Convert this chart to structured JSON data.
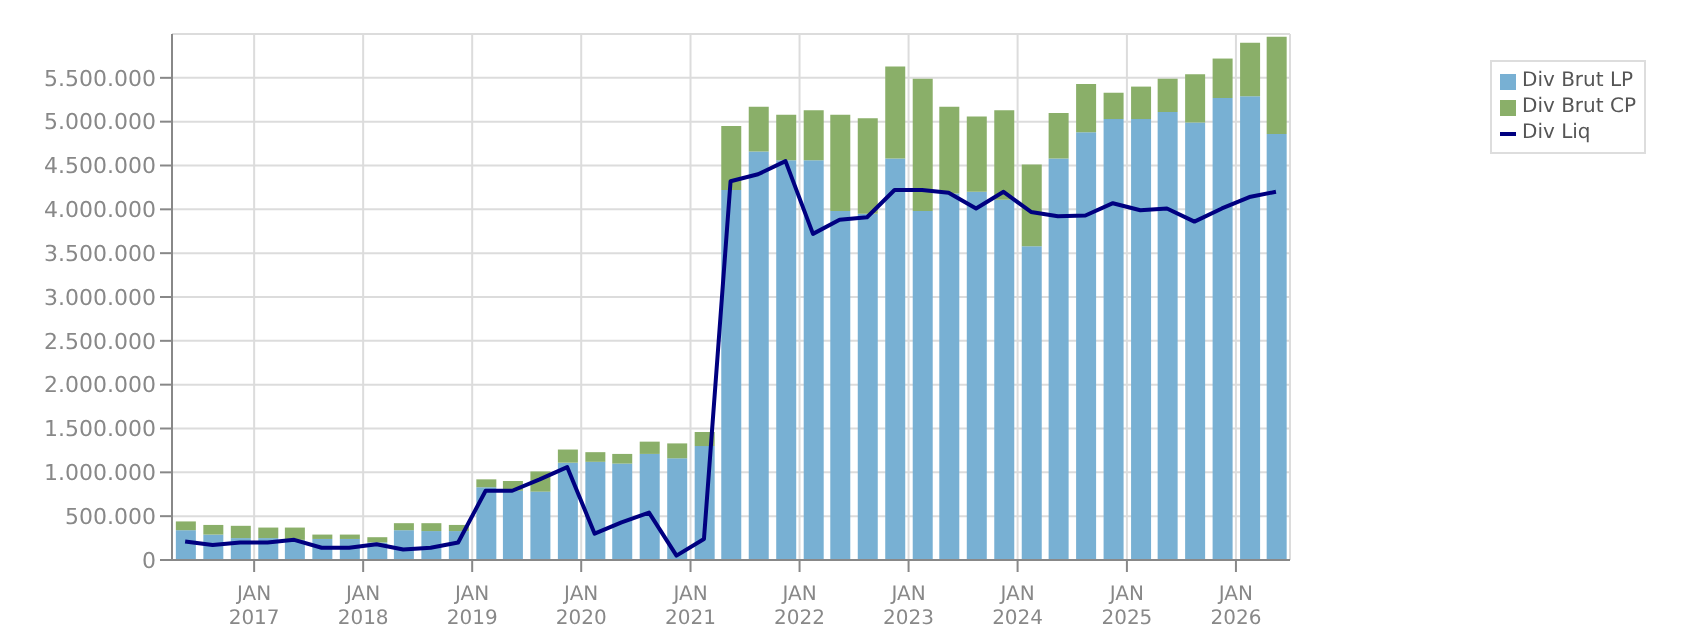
{
  "chart_data": {
    "type": "bar",
    "stacked": true,
    "grid": true,
    "legend": "top right",
    "x": [
      "2016-05-15",
      "2016-08-15",
      "2016-11-15",
      "2017-02-15",
      "2017-05-15",
      "2017-08-15",
      "2017-11-15",
      "2018-02-15",
      "2018-05-15",
      "2018-08-15",
      "2018-11-15",
      "2019-02-15",
      "2019-05-15",
      "2019-08-15",
      "2019-11-15",
      "2020-02-15",
      "2020-05-15",
      "2020-08-15",
      "2020-11-15",
      "2021-02-15",
      "2021-05-15",
      "2021-08-15",
      "2021-11-15",
      "2022-02-15",
      "2022-05-15",
      "2022-08-15",
      "2022-11-15",
      "2023-02-15",
      "2023-05-15",
      "2023-08-15",
      "2023-11-15",
      "2024-02-15",
      "2024-05-15",
      "2024-08-15",
      "2024-11-15",
      "2025-02-15",
      "2025-05-15",
      "2025-08-15",
      "2025-11-15",
      "2026-02-15",
      "2026-05-15"
    ],
    "xlim": [
      "2016-04-01",
      "2026-07-01"
    ],
    "xticks": [
      {
        "value": "2017-01-01",
        "label": "JAN 2017"
      },
      {
        "value": "2018-01-01",
        "label": "JAN 2018"
      },
      {
        "value": "2019-01-01",
        "label": "JAN 2019"
      },
      {
        "value": "2020-01-01",
        "label": "JAN 2020"
      },
      {
        "value": "2021-01-01",
        "label": "JAN 2021"
      },
      {
        "value": "2022-01-01",
        "label": "JAN 2022"
      },
      {
        "value": "2023-01-01",
        "label": "JAN 2023"
      },
      {
        "value": "2024-01-01",
        "label": "JAN 2024"
      },
      {
        "value": "2025-01-01",
        "label": "JAN 2025"
      },
      {
        "value": "2026-01-01",
        "label": "JAN 2026"
      }
    ],
    "ylim": [
      0,
      6000000
    ],
    "yticks": [
      0,
      {
        "value": 500000,
        "label": "500.000"
      },
      {
        "value": 1000000,
        "label": "1.000.000"
      },
      {
        "value": 1500000,
        "label": "1.500.000"
      },
      {
        "value": 2000000,
        "label": "2.000.000"
      },
      {
        "value": 2500000,
        "label": "2.500.000"
      },
      {
        "value": 3000000,
        "label": "3.000.000"
      },
      {
        "value": 3500000,
        "label": "3.500.000"
      },
      {
        "value": 4000000,
        "label": "4.000.000"
      },
      {
        "value": 4500000,
        "label": "4.500.000"
      },
      {
        "value": 5000000,
        "label": "5.000.000"
      },
      {
        "value": 5500000,
        "label": "5.500.000"
      }
    ],
    "series": [
      {
        "name": "Div Brut LP",
        "color": "#78b0d3",
        "values": [
          340000,
          290000,
          250000,
          250000,
          230000,
          240000,
          240000,
          200000,
          340000,
          330000,
          330000,
          830000,
          790000,
          780000,
          1110000,
          1120000,
          1100000,
          1210000,
          1160000,
          1300000,
          4220000,
          4660000,
          4560000,
          4560000,
          3980000,
          3950000,
          4580000,
          3980000,
          4180000,
          4200000,
          4110000,
          3580000,
          4580000,
          4880000,
          5030000,
          5030000,
          5110000,
          4990000,
          5270000,
          5290000,
          4860000
        ]
      },
      {
        "name": "Div Brut CP",
        "color": "#8aaf69",
        "values": [
          100000,
          110000,
          140000,
          120000,
          140000,
          50000,
          50000,
          60000,
          80000,
          90000,
          70000,
          90000,
          110000,
          230000,
          150000,
          110000,
          110000,
          140000,
          170000,
          160000,
          730000,
          510000,
          520000,
          570000,
          1100000,
          1090000,
          1050000,
          1510000,
          990000,
          860000,
          1020000,
          930000,
          520000,
          550000,
          300000,
          370000,
          380000,
          550000,
          450000,
          610000,
          1110000
        ]
      },
      {
        "name": "Div Liq",
        "type": "line",
        "color": "#000080",
        "values": [
          210000,
          170000,
          200000,
          200000,
          230000,
          140000,
          140000,
          180000,
          120000,
          140000,
          200000,
          790000,
          790000,
          920000,
          1060000,
          300000,
          430000,
          540000,
          50000,
          240000,
          4320000,
          4400000,
          4550000,
          3720000,
          3880000,
          3910000,
          4220000,
          4220000,
          4190000,
          4010000,
          4200000,
          3970000,
          3920000,
          3930000,
          4070000,
          3990000,
          4010000,
          3860000,
          4010000,
          4140000,
          4200000
        ]
      }
    ]
  }
}
